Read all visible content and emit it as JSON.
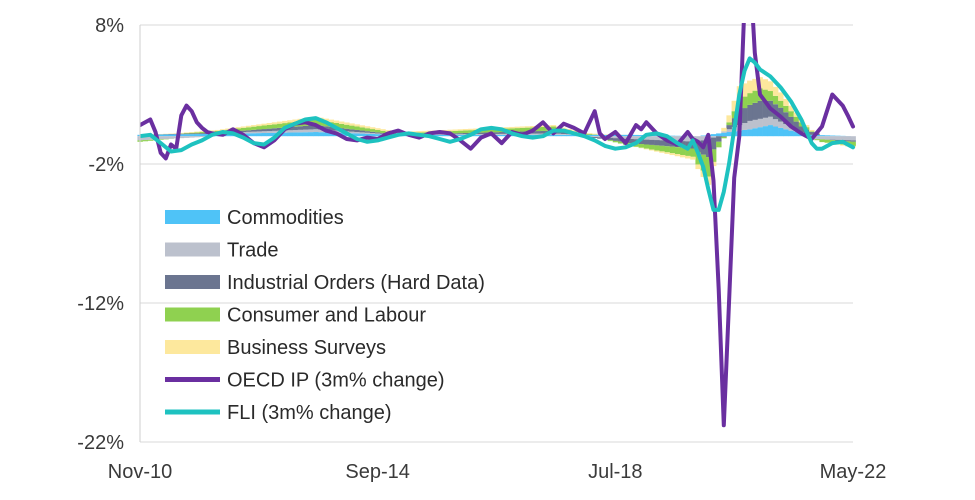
{
  "chart_data": {
    "type": "area",
    "title": "",
    "xlabel": "",
    "ylabel": "",
    "ylim": [
      -22,
      8
    ],
    "y_ticks": [
      "8%",
      "-2%",
      "-12%",
      "-22%"
    ],
    "y_tick_values": [
      8,
      -2,
      -12,
      -22
    ],
    "x_ticks": [
      "Nov-10",
      "Sep-14",
      "Jul-18",
      "May-22"
    ],
    "x_tick_positions": [
      0,
      46,
      92,
      138
    ],
    "grid": "horizontal",
    "legend_position": "left-center",
    "x_count": 139,
    "stacked_series": [
      {
        "name": "Commodities",
        "color": "#4fc3f7",
        "points": [
          [
            0,
            0.1
          ],
          [
            20,
            0.2
          ],
          [
            34,
            0.3
          ],
          [
            50,
            0.1
          ],
          [
            80,
            0.1
          ],
          [
            95,
            0.1
          ],
          [
            108,
            0
          ],
          [
            118,
            0.5
          ],
          [
            122,
            0.8
          ],
          [
            126,
            0.4
          ],
          [
            130,
            0.1
          ],
          [
            138,
            0
          ]
        ]
      },
      {
        "name": "Trade",
        "color": "#bcc1cd",
        "points": [
          [
            0,
            -0.3
          ],
          [
            20,
            0.1
          ],
          [
            34,
            0.2
          ],
          [
            50,
            0
          ],
          [
            80,
            0.1
          ],
          [
            95,
            -0.2
          ],
          [
            108,
            -0.4
          ],
          [
            118,
            0.6
          ],
          [
            122,
            0.6
          ],
          [
            126,
            0.3
          ],
          [
            130,
            -0.2
          ],
          [
            138,
            -0.3
          ]
        ]
      },
      {
        "name": "Industrial Orders (Hard Data)",
        "color": "#6b7590",
        "points": [
          [
            0,
            0
          ],
          [
            20,
            0.1
          ],
          [
            34,
            0.3
          ],
          [
            50,
            0
          ],
          [
            80,
            0.2
          ],
          [
            95,
            -0.3
          ],
          [
            107,
            -0.5
          ],
          [
            110,
            -1.3
          ],
          [
            112,
            -0.4
          ],
          [
            116,
            1.0
          ],
          [
            120,
            1.3
          ],
          [
            124,
            1.0
          ],
          [
            128,
            0.4
          ],
          [
            132,
            0
          ],
          [
            138,
            -0.1
          ]
        ]
      },
      {
        "name": "Consumer and Labour",
        "color": "#8fd150",
        "points": [
          [
            0,
            -0.1
          ],
          [
            20,
            0.2
          ],
          [
            34,
            0.4
          ],
          [
            50,
            0.1
          ],
          [
            80,
            0.3
          ],
          [
            95,
            -0.2
          ],
          [
            107,
            -0.6
          ],
          [
            110,
            -1.4
          ],
          [
            112,
            -0.4
          ],
          [
            116,
            0.8
          ],
          [
            120,
            0.9
          ],
          [
            124,
            0.5
          ],
          [
            128,
            0.3
          ],
          [
            132,
            -0.2
          ],
          [
            138,
            -0.3
          ]
        ]
      },
      {
        "name": "Business Surveys",
        "color": "#fde89d",
        "points": [
          [
            0,
            0
          ],
          [
            20,
            0.1
          ],
          [
            34,
            0.2
          ],
          [
            50,
            0.1
          ],
          [
            80,
            0.1
          ],
          [
            95,
            0
          ],
          [
            107,
            -0.2
          ],
          [
            110,
            -0.6
          ],
          [
            112,
            0
          ],
          [
            116,
            1.0
          ],
          [
            120,
            0.8
          ],
          [
            124,
            0.6
          ],
          [
            128,
            0.2
          ],
          [
            132,
            0
          ],
          [
            138,
            -0.1
          ]
        ]
      }
    ],
    "line_series": [
      {
        "name": "OECD IP (3m% change)",
        "color": "#6a2fa0",
        "points": [
          [
            0,
            0.8
          ],
          [
            2,
            1.2
          ],
          [
            3,
            0.3
          ],
          [
            4,
            -1.2
          ],
          [
            5,
            -1.6
          ],
          [
            6,
            -0.6
          ],
          [
            7,
            -0.9
          ],
          [
            8,
            1.5
          ],
          [
            9,
            2.2
          ],
          [
            10,
            1.8
          ],
          [
            11,
            1.0
          ],
          [
            12,
            0.6
          ],
          [
            13,
            0.3
          ],
          [
            14,
            0.2
          ],
          [
            16,
            0.1
          ],
          [
            18,
            0.5
          ],
          [
            20,
            0.1
          ],
          [
            22,
            -0.5
          ],
          [
            24,
            -0.8
          ],
          [
            26,
            -0.3
          ],
          [
            28,
            0.5
          ],
          [
            30,
            0.9
          ],
          [
            32,
            1.0
          ],
          [
            34,
            0.8
          ],
          [
            36,
            0.4
          ],
          [
            38,
            0.2
          ],
          [
            40,
            -0.2
          ],
          [
            42,
            -0.3
          ],
          [
            44,
            -0.1
          ],
          [
            46,
            -0.2
          ],
          [
            48,
            0.2
          ],
          [
            50,
            0.4
          ],
          [
            52,
            0.1
          ],
          [
            54,
            -0.1
          ],
          [
            56,
            0.2
          ],
          [
            58,
            0.3
          ],
          [
            60,
            0.2
          ],
          [
            62,
            -0.3
          ],
          [
            64,
            -0.9
          ],
          [
            66,
            -0.1
          ],
          [
            68,
            0.2
          ],
          [
            70,
            -0.5
          ],
          [
            72,
            0.3
          ],
          [
            74,
            0.1
          ],
          [
            76,
            0.4
          ],
          [
            78,
            1.0
          ],
          [
            80,
            0.2
          ],
          [
            82,
            0.9
          ],
          [
            84,
            0.6
          ],
          [
            86,
            0.2
          ],
          [
            88,
            1.8
          ],
          [
            89,
            0.2
          ],
          [
            90,
            -0.2
          ],
          [
            92,
            0.3
          ],
          [
            94,
            -0.5
          ],
          [
            96,
            0.8
          ],
          [
            97,
            0.5
          ],
          [
            98,
            1.0
          ],
          [
            100,
            0.2
          ],
          [
            102,
            -0.3
          ],
          [
            104,
            -0.6
          ],
          [
            106,
            0.3
          ],
          [
            107,
            -0.2
          ],
          [
            108,
            -0.4
          ],
          [
            109,
            -0.8
          ],
          [
            110,
            0.1
          ],
          [
            111,
            -3.2
          ],
          [
            112,
            -11.0
          ],
          [
            113,
            -20.8
          ],
          [
            114,
            -12.0
          ],
          [
            115,
            -3.0
          ],
          [
            116,
            0
          ],
          [
            117,
            9.5
          ],
          [
            118,
            12.5
          ],
          [
            119,
            6.0
          ],
          [
            120,
            3.0
          ],
          [
            122,
            2.0
          ],
          [
            124,
            1.4
          ],
          [
            126,
            0.7
          ],
          [
            128,
            0.2
          ],
          [
            130,
            -0.2
          ],
          [
            132,
            0.7
          ],
          [
            134,
            3.0
          ],
          [
            136,
            2.2
          ],
          [
            137,
            1.5
          ],
          [
            138,
            0.7
          ]
        ]
      },
      {
        "name": "FLI (3m% change)",
        "color": "#1ec2c0",
        "points": [
          [
            0,
            0
          ],
          [
            2,
            0.1
          ],
          [
            4,
            -0.5
          ],
          [
            6,
            -1.1
          ],
          [
            8,
            -1.0
          ],
          [
            10,
            -0.6
          ],
          [
            12,
            -0.3
          ],
          [
            14,
            0.1
          ],
          [
            16,
            0.3
          ],
          [
            18,
            0.2
          ],
          [
            20,
            -0.1
          ],
          [
            22,
            -0.5
          ],
          [
            24,
            -0.6
          ],
          [
            26,
            -0.1
          ],
          [
            28,
            0.6
          ],
          [
            30,
            0.9
          ],
          [
            32,
            1.2
          ],
          [
            34,
            1.3
          ],
          [
            36,
            1.0
          ],
          [
            38,
            0.6
          ],
          [
            40,
            0.2
          ],
          [
            42,
            -0.2
          ],
          [
            44,
            -0.4
          ],
          [
            46,
            -0.3
          ],
          [
            48,
            -0.1
          ],
          [
            50,
            0.1
          ],
          [
            52,
            0.2
          ],
          [
            54,
            0.1
          ],
          [
            56,
            0
          ],
          [
            58,
            -0.2
          ],
          [
            60,
            -0.4
          ],
          [
            62,
            -0.2
          ],
          [
            64,
            0.1
          ],
          [
            66,
            0.5
          ],
          [
            68,
            0.6
          ],
          [
            70,
            0.5
          ],
          [
            72,
            0.2
          ],
          [
            74,
            0
          ],
          [
            76,
            -0.1
          ],
          [
            78,
            0
          ],
          [
            80,
            0.4
          ],
          [
            82,
            0.4
          ],
          [
            84,
            0.2
          ],
          [
            86,
            0
          ],
          [
            88,
            -0.3
          ],
          [
            90,
            -0.7
          ],
          [
            92,
            -0.9
          ],
          [
            94,
            -0.8
          ],
          [
            96,
            -0.5
          ],
          [
            98,
            0.1
          ],
          [
            100,
            0.2
          ],
          [
            102,
            0
          ],
          [
            104,
            -0.5
          ],
          [
            106,
            -0.9
          ],
          [
            107,
            -0.3
          ],
          [
            108,
            -1.2
          ],
          [
            109,
            -2.2
          ],
          [
            110,
            -3.8
          ],
          [
            111,
            -5.3
          ],
          [
            112,
            -5.3
          ],
          [
            113,
            -4.0
          ],
          [
            114,
            -2.0
          ],
          [
            115,
            0.5
          ],
          [
            116,
            3.0
          ],
          [
            117,
            4.7
          ],
          [
            118,
            5.6
          ],
          [
            119,
            5.3
          ],
          [
            120,
            4.8
          ],
          [
            122,
            4.3
          ],
          [
            124,
            3.5
          ],
          [
            126,
            2.5
          ],
          [
            128,
            1.2
          ],
          [
            130,
            -0.5
          ],
          [
            131,
            -0.9
          ],
          [
            132,
            -0.9
          ],
          [
            134,
            -0.5
          ],
          [
            136,
            -0.4
          ],
          [
            138,
            -0.8
          ]
        ]
      }
    ]
  }
}
